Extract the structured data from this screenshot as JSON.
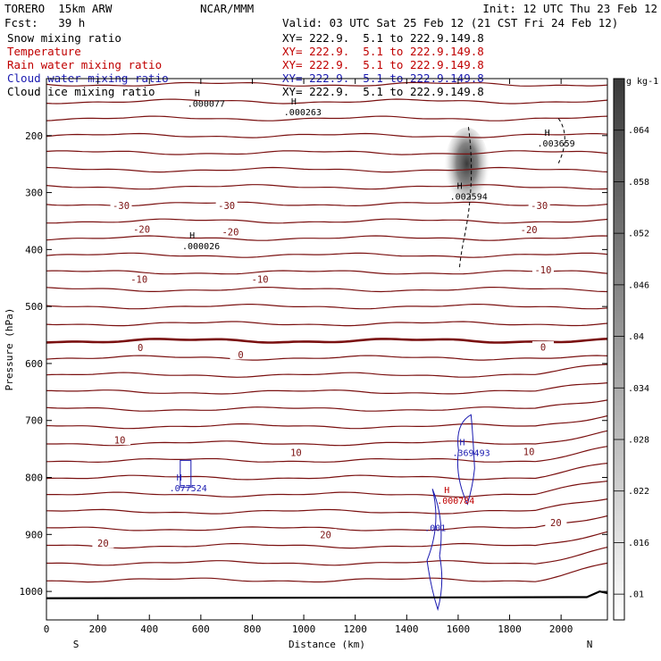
{
  "header": {
    "model": "TORERO  15km ARW",
    "center": "NCAR/MMM",
    "init": "Init: 12 UTC Thu 23 Feb 12",
    "fcst": "Fcst:   39 h",
    "valid": "Valid: 03 UTC Sat 25 Feb 12 (21 CST Fri 24 Feb 12)"
  },
  "fields": [
    {
      "label": "Snow mixing ratio",
      "xy": "XY= 222.9.  5.1 to 222.9.149.8",
      "color": "#000000"
    },
    {
      "label": "Temperature",
      "xy": "XY= 222.9.  5.1 to 222.9.149.8",
      "color": "#c00000"
    },
    {
      "label": "Rain water mixing ratio",
      "xy": "XY= 222.9.  5.1 to 222.9.149.8",
      "color": "#c00000"
    },
    {
      "label": "Cloud water mixing ratio",
      "xy": "XY= 222.9.  5.1 to 222.9.149.8",
      "color": "#1a1ab0"
    },
    {
      "label": "Cloud ice mixing ratio",
      "xy": "XY= 222.9.  5.1 to 222.9.149.8",
      "color": "#000000"
    }
  ],
  "chart_data": {
    "type": "heatmap",
    "xlabel": "Distance (km)",
    "ylabel": "Pressure (hPa)",
    "xlim": [
      0,
      2180
    ],
    "ylim": [
      1050,
      100
    ],
    "x_ticks": [
      0,
      200,
      400,
      600,
      800,
      1000,
      1200,
      1400,
      1600,
      1800,
      2000
    ],
    "y_ticks": [
      200,
      300,
      400,
      500,
      600,
      700,
      800,
      900,
      1000
    ],
    "end_labels": {
      "left": "S",
      "right": "N"
    },
    "colorbar": {
      "unit": "g kg-1",
      "ticks": [
        0.01,
        0.016,
        0.022,
        0.028,
        0.034,
        0.04,
        0.046,
        0.052,
        0.058,
        0.064
      ],
      "tick_labels": [
        ".01",
        ".016",
        ".022",
        ".028",
        ".034",
        ".04",
        ".046",
        ".052",
        ".058",
        ".064"
      ],
      "range": [
        0.007,
        0.07
      ]
    },
    "snow_shading": {
      "x_km": 1620,
      "p_top": 195,
      "p_bottom": 335,
      "max": 0.07
    },
    "temperature_labels": [
      {
        "text": "-30",
        "x": 290,
        "p": 323
      },
      {
        "text": "-30",
        "x": 700,
        "p": 323
      },
      {
        "text": "-30",
        "x": 1915,
        "p": 323
      },
      {
        "text": "-20",
        "x": 370,
        "p": 365
      },
      {
        "text": "-20",
        "x": 715,
        "p": 370
      },
      {
        "text": "-20",
        "x": 1875,
        "p": 366
      },
      {
        "text": "-10",
        "x": 360,
        "p": 453
      },
      {
        "text": "-10",
        "x": 830,
        "p": 453
      },
      {
        "text": "-10",
        "x": 1930,
        "p": 436
      },
      {
        "text": "0",
        "x": 365,
        "p": 573
      },
      {
        "text": "0",
        "x": 755,
        "p": 585
      },
      {
        "text": "0",
        "x": 1930,
        "p": 572
      },
      {
        "text": "10",
        "x": 285,
        "p": 735
      },
      {
        "text": "10",
        "x": 970,
        "p": 757
      },
      {
        "text": "10",
        "x": 1875,
        "p": 755
      },
      {
        "text": "20",
        "x": 220,
        "p": 916
      },
      {
        "text": "20",
        "x": 1085,
        "p": 901
      },
      {
        "text": "20",
        "x": 1980,
        "p": 880
      }
    ],
    "extrema": [
      {
        "mark": "H",
        "value": ".000077",
        "x": 600,
        "p": 135,
        "color": "#000000"
      },
      {
        "mark": "H",
        "value": ".000263",
        "x": 975,
        "p": 150,
        "color": "#000000"
      },
      {
        "mark": "H",
        "value": ".003659",
        "x": 1960,
        "p": 205,
        "color": "#000000"
      },
      {
        "mark": "H",
        "value": ".002594",
        "x": 1620,
        "p": 298,
        "color": "#000000"
      },
      {
        "mark": "H",
        "value": ".000026",
        "x": 580,
        "p": 385,
        "color": "#000000"
      },
      {
        "mark": "H",
        "value": ".369493",
        "x": 1630,
        "p": 748,
        "color": "#1a1ab0"
      },
      {
        "mark": "H",
        "value": ".077524",
        "x": 530,
        "p": 810,
        "color": "#1a1ab0"
      },
      {
        "mark": "H",
        "value": ".000784",
        "x": 1570,
        "p": 832,
        "color": "#c00000"
      },
      {
        "mark": "",
        "value": ".001",
        "x": 1490,
        "p": 880,
        "color": "#1a1ab0"
      }
    ]
  }
}
